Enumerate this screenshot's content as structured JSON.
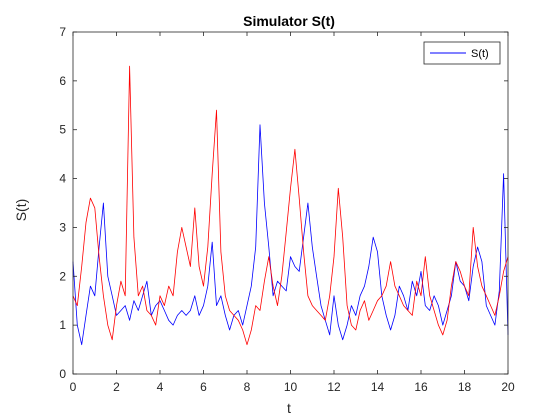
{
  "chart_data": {
    "type": "line",
    "title": "Simulator S(t)",
    "xlabel": "t",
    "ylabel": "S(t)",
    "xlim": [
      0,
      20
    ],
    "ylim": [
      0,
      7
    ],
    "xticks": [
      "0",
      "2",
      "4",
      "6",
      "8",
      "10",
      "12",
      "14",
      "16",
      "18",
      "20"
    ],
    "yticks": [
      "0",
      "1",
      "2",
      "3",
      "4",
      "5",
      "6",
      "7"
    ],
    "grid": false,
    "legend": {
      "position": "top-right",
      "entries": [
        "S(t)"
      ]
    },
    "series": [
      {
        "name": "S(t)",
        "color": "#0000ff",
        "x": [
          0,
          0.2,
          0.4,
          0.6,
          0.8,
          1.0,
          1.2,
          1.4,
          1.6,
          1.8,
          2.0,
          2.2,
          2.4,
          2.6,
          2.8,
          3.0,
          3.2,
          3.4,
          3.6,
          3.8,
          4.0,
          4.2,
          4.4,
          4.6,
          4.8,
          5.0,
          5.2,
          5.4,
          5.6,
          5.8,
          6.0,
          6.2,
          6.4,
          6.6,
          6.8,
          7.0,
          7.2,
          7.4,
          7.6,
          7.8,
          8.0,
          8.2,
          8.4,
          8.6,
          8.8,
          9.0,
          9.2,
          9.4,
          9.6,
          9.8,
          10.0,
          10.2,
          10.4,
          10.6,
          10.8,
          11.0,
          11.2,
          11.4,
          11.6,
          11.8,
          12.0,
          12.2,
          12.4,
          12.6,
          12.8,
          13.0,
          13.2,
          13.4,
          13.6,
          13.8,
          14.0,
          14.2,
          14.4,
          14.6,
          14.8,
          15.0,
          15.2,
          15.4,
          15.6,
          15.8,
          16.0,
          16.2,
          16.4,
          16.6,
          16.8,
          17.0,
          17.2,
          17.4,
          17.6,
          17.8,
          18.0,
          18.2,
          18.4,
          18.6,
          18.8,
          19.0,
          19.2,
          19.4,
          19.6,
          19.8,
          20.0
        ],
        "y": [
          2.3,
          1.0,
          0.6,
          1.2,
          1.8,
          1.6,
          2.6,
          3.5,
          2.0,
          1.6,
          1.2,
          1.3,
          1.4,
          1.1,
          1.5,
          1.3,
          1.6,
          1.9,
          1.2,
          1.4,
          1.5,
          1.3,
          1.1,
          1.0,
          1.2,
          1.3,
          1.2,
          1.3,
          1.6,
          1.2,
          1.4,
          1.8,
          2.7,
          1.4,
          1.6,
          1.2,
          0.9,
          1.2,
          1.3,
          1.0,
          1.4,
          1.8,
          2.6,
          5.1,
          3.5,
          2.6,
          1.6,
          1.9,
          1.8,
          1.7,
          2.4,
          2.2,
          2.1,
          2.8,
          3.5,
          2.6,
          2.0,
          1.4,
          1.1,
          0.8,
          1.6,
          1.0,
          0.7,
          1.0,
          1.4,
          1.2,
          1.6,
          1.8,
          2.2,
          2.8,
          2.5,
          1.6,
          1.2,
          0.9,
          1.2,
          1.8,
          1.6,
          1.3,
          1.9,
          1.6,
          2.1,
          1.4,
          1.3,
          1.6,
          1.4,
          1.0,
          1.3,
          1.6,
          2.3,
          1.9,
          1.8,
          1.5,
          2.2,
          2.6,
          2.3,
          1.4,
          1.2,
          1.0,
          1.7,
          4.1,
          0.8
        ]
      },
      {
        "name": "",
        "color": "#ff0000",
        "x": [
          0,
          0.2,
          0.4,
          0.6,
          0.8,
          1.0,
          1.2,
          1.4,
          1.6,
          1.8,
          2.0,
          2.2,
          2.4,
          2.6,
          2.8,
          3.0,
          3.2,
          3.4,
          3.6,
          3.8,
          4.0,
          4.2,
          4.4,
          4.6,
          4.8,
          5.0,
          5.2,
          5.4,
          5.6,
          5.8,
          6.0,
          6.2,
          6.4,
          6.6,
          6.8,
          7.0,
          7.2,
          7.4,
          7.6,
          7.8,
          8.0,
          8.2,
          8.4,
          8.6,
          8.8,
          9.0,
          9.2,
          9.4,
          9.6,
          9.8,
          10.0,
          10.2,
          10.4,
          10.6,
          10.8,
          11.0,
          11.2,
          11.4,
          11.6,
          11.8,
          12.0,
          12.2,
          12.4,
          12.6,
          12.8,
          13.0,
          13.2,
          13.4,
          13.6,
          13.8,
          14.0,
          14.2,
          14.4,
          14.6,
          14.8,
          15.0,
          15.2,
          15.4,
          15.6,
          15.8,
          16.0,
          16.2,
          16.4,
          16.6,
          16.8,
          17.0,
          17.2,
          17.4,
          17.6,
          17.8,
          18.0,
          18.2,
          18.4,
          18.6,
          18.8,
          19.0,
          19.2,
          19.4,
          19.6,
          19.8,
          20.0
        ],
        "y": [
          1.6,
          1.4,
          2.2,
          3.1,
          3.6,
          3.4,
          2.4,
          1.6,
          1.0,
          0.7,
          1.4,
          1.9,
          1.6,
          6.3,
          2.8,
          1.6,
          1.8,
          1.3,
          1.2,
          1.0,
          1.6,
          1.4,
          1.8,
          1.6,
          2.5,
          3.0,
          2.6,
          2.2,
          3.4,
          2.2,
          1.8,
          2.6,
          4.1,
          5.4,
          2.5,
          1.6,
          1.3,
          1.2,
          1.1,
          0.9,
          0.6,
          0.9,
          1.4,
          1.3,
          1.9,
          2.4,
          1.8,
          1.4,
          2.0,
          2.9,
          3.8,
          4.6,
          3.6,
          2.5,
          1.6,
          1.4,
          1.3,
          1.2,
          1.1,
          1.6,
          2.4,
          3.8,
          2.8,
          1.4,
          1.0,
          0.9,
          1.3,
          1.5,
          1.1,
          1.3,
          1.5,
          1.6,
          1.8,
          2.3,
          1.8,
          1.6,
          1.4,
          1.3,
          1.2,
          1.9,
          1.6,
          2.4,
          1.6,
          1.3,
          1.0,
          0.8,
          1.1,
          1.8,
          2.3,
          2.1,
          1.8,
          1.6,
          3.0,
          2.2,
          1.8,
          1.6,
          1.4,
          1.2,
          1.6,
          2.1,
          2.4
        ]
      }
    ]
  }
}
